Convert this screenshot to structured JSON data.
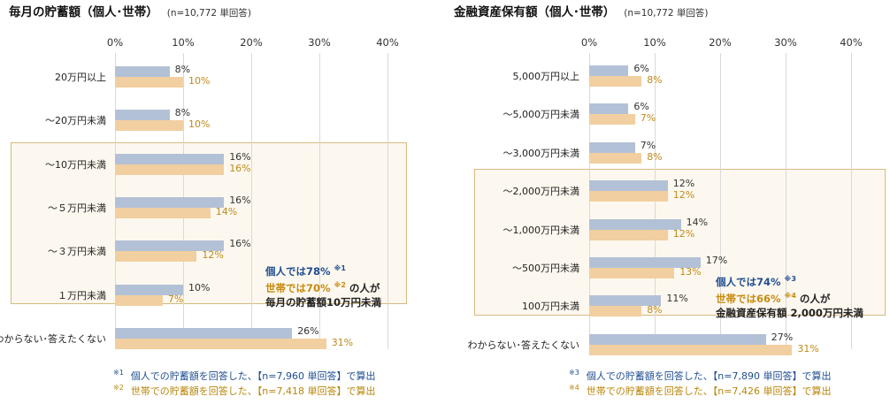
{
  "chart_data": [
    {
      "type": "bar",
      "orientation": "horizontal",
      "title": "毎月の貯蓄額（個人･世帯）",
      "sample": "(n=10,772 単回答)",
      "xlim": [
        0,
        40
      ],
      "ticks": [
        "0%",
        "10%",
        "20%",
        "30%",
        "40%"
      ],
      "categories": [
        "20万円以上",
        "～20万円未満",
        "～10万円未満",
        "～５万円未満",
        "～３万円未満",
        "１万円未満",
        "わからない･答えたくない"
      ],
      "series": [
        {
          "key": "individual",
          "values": [
            8,
            8,
            16,
            16,
            16,
            10,
            26
          ]
        },
        {
          "key": "household",
          "values": [
            10,
            10,
            16,
            14,
            12,
            7,
            31
          ]
        }
      ],
      "value_labels": {
        "individual": [
          "8%",
          "8%",
          "16%",
          "16%",
          "16%",
          "10%",
          "26%"
        ],
        "household": [
          "10%",
          "10%",
          "16%",
          "14%",
          "12%",
          "7%",
          "31%"
        ]
      },
      "highlight_categories": [
        2,
        5
      ],
      "callout": {
        "line1": "個人では78%",
        "line1_mark": "※1",
        "line2": "世帯では70%",
        "line2_mark": "※2",
        "line2_suffix": "の人が",
        "line3": "毎月の貯蓄額10万円未満"
      },
      "footnotes": [
        {
          "mark": "※1",
          "text": "個人での貯蓄額を回答した、【n=7,960 単回答】で算出"
        },
        {
          "mark": "※2",
          "text": "世帯での貯蓄額を回答した、【n=7,418 単回答】で算出"
        }
      ]
    },
    {
      "type": "bar",
      "orientation": "horizontal",
      "title": "金融資産保有額（個人･世帯）",
      "sample": "(n=10,772 単回答)",
      "xlim": [
        0,
        40
      ],
      "ticks": [
        "0%",
        "10%",
        "20%",
        "30%",
        "40%"
      ],
      "categories": [
        "5,000万円以上",
        "～5,000万円未満",
        "～3,000万円未満",
        "～2,000万円未満",
        "～1,000万円未満",
        "～500万円未満",
        "100万円未満",
        "わからない･答えたくない"
      ],
      "series": [
        {
          "key": "individual",
          "values": [
            6,
            6,
            7,
            12,
            14,
            17,
            11,
            27
          ]
        },
        {
          "key": "household",
          "values": [
            8,
            7,
            8,
            12,
            12,
            13,
            8,
            31
          ]
        }
      ],
      "value_labels": {
        "individual": [
          "6%",
          "6%",
          "7%",
          "12%",
          "14%",
          "17%",
          "11%",
          "27%"
        ],
        "household": [
          "8%",
          "7%",
          "8%",
          "12%",
          "12%",
          "13%",
          "8%",
          "31%"
        ]
      },
      "highlight_categories": [
        3,
        6
      ],
      "callout": {
        "line1": "個人では74%",
        "line1_mark": "※3",
        "line2": "世帯では66%",
        "line2_mark": "※4",
        "line2_suffix": "の人が",
        "line3": "金融資産保有額 2,000万円未満"
      },
      "footnotes": [
        {
          "mark": "※3",
          "text": "個人での貯蓄額を回答した、【n=7,890 単回答】で算出"
        },
        {
          "mark": "※4",
          "text": "世帯での貯蓄額を回答した、【n=7,426 単回答】で算出"
        }
      ]
    }
  ],
  "colors": {
    "individual_bar": "#b3c1d6",
    "household_bar": "#f2cfa0",
    "individual_text": "#1f4e91",
    "household_text": "#c88a10",
    "highlight_border": "#d7b981",
    "highlight_fill": "#fdf8ef"
  }
}
